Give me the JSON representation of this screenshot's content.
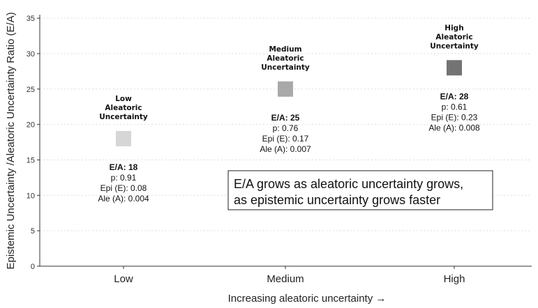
{
  "chart_data": {
    "type": "scatter",
    "categories": [
      "Low",
      "Medium",
      "High"
    ],
    "values": [
      18,
      25,
      28
    ],
    "point_colors": [
      "#d6d6d6",
      "#a9a9a9",
      "#737373"
    ],
    "point_titles": [
      [
        "Low",
        "Aleatoric",
        "Uncertainty"
      ],
      [
        "Medium",
        "Aleatoric",
        "Uncertainty"
      ],
      [
        "High",
        "Aleatoric",
        "Uncertainty"
      ]
    ],
    "ratio_labels": [
      "E/A: 18",
      "E/A: 25",
      "E/A: 28"
    ],
    "stat_lines": [
      [
        "p: 0.91",
        "Epi (E): 0.08",
        "Ale (A): 0.004"
      ],
      [
        "p: 0.76",
        "Epi (E): 0.17",
        "Ale (A): 0.007"
      ],
      [
        "p: 0.61",
        "Epi (E): 0.23",
        "Ale (A): 0.008"
      ]
    ],
    "xlabel": "Increasing aleatoric uncertainty →",
    "ylabel": "Epistemic Uncertainty /Aleatoric Uncertainty Ratio (E/A)",
    "ylim": [
      0,
      35.5
    ],
    "yticks": [
      0,
      5,
      10,
      15,
      20,
      25,
      30,
      35
    ],
    "grid": "horizontal dotted",
    "annotation": [
      "E/A grows as aleatoric uncertainty grows,",
      "as epistemic uncertainty grows faster"
    ]
  }
}
